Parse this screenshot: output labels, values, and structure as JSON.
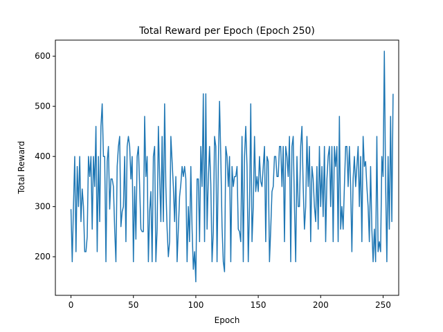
{
  "chart_data": {
    "type": "line",
    "title": "Total Reward per Epoch (Epoch 250)",
    "xlabel": "Epoch",
    "ylabel": "Total Reward",
    "xlim": [
      -12.5,
      262.5
    ],
    "ylim": [
      123,
      632
    ],
    "xticks": [
      0,
      50,
      100,
      150,
      200,
      250
    ],
    "yticks": [
      200,
      300,
      400,
      500,
      600
    ],
    "grid": false,
    "line_color": "#1f77b4",
    "series": [
      {
        "x_start": 0,
        "x_step": 1,
        "values": [
          295,
          190,
          300,
          400,
          210,
          380,
          300,
          400,
          270,
          335,
          300,
          210,
          210,
          240,
          400,
          360,
          400,
          255,
          400,
          340,
          460,
          210,
          400,
          270,
          460,
          505,
          400,
          400,
          190,
          390,
          420,
          295,
          355,
          355,
          340,
          255,
          190,
          380,
          420,
          440,
          260,
          290,
          300,
          400,
          230,
          420,
          440,
          420,
          355,
          400,
          190,
          340,
          235,
          400,
          420,
          340,
          255,
          250,
          250,
          480,
          360,
          400,
          190,
          290,
          330,
          190,
          400,
          420,
          190,
          255,
          460,
          360,
          270,
          440,
          270,
          505,
          340,
          255,
          200,
          230,
          440,
          390,
          340,
          270,
          360,
          190,
          255,
          320,
          345,
          380,
          360,
          380,
          355,
          190,
          300,
          230,
          380,
          255,
          175,
          210,
          150,
          355,
          355,
          230,
          420,
          340,
          525,
          230,
          525,
          255,
          355,
          420,
          345,
          190,
          250,
          440,
          420,
          190,
          380,
          510,
          400,
          260,
          190,
          170,
          420,
          400,
          340,
          400,
          190,
          380,
          340,
          360,
          360,
          380,
          255,
          250,
          230,
          440,
          190,
          400,
          460,
          380,
          190,
          300,
          505,
          230,
          300,
          440,
          330,
          360,
          330,
          400,
          350,
          340,
          380,
          420,
          230,
          400,
          390,
          190,
          255,
          330,
          340,
          400,
          400,
          360,
          360,
          420,
          420,
          340,
          420,
          230,
          420,
          400,
          360,
          440,
          190,
          420,
          440,
          300,
          190,
          400,
          300,
          300,
          420,
          460,
          340,
          255,
          300,
          440,
          340,
          420,
          230,
          380,
          355,
          300,
          270,
          380,
          255,
          420,
          300,
          380,
          280,
          420,
          230,
          355,
          400,
          420,
          300,
          420,
          230,
          420,
          380,
          420,
          230,
          480,
          255,
          300,
          255,
          340,
          420,
          420,
          340,
          420,
          340,
          210,
          355,
          400,
          340,
          380,
          420,
          300,
          400,
          230,
          440,
          380,
          390,
          340,
          300,
          230,
          380,
          255,
          190,
          255,
          190,
          440,
          210,
          230,
          210,
          400,
          360,
          610,
          350,
          190,
          400,
          255,
          480,
          270,
          525
        ]
      }
    ]
  }
}
